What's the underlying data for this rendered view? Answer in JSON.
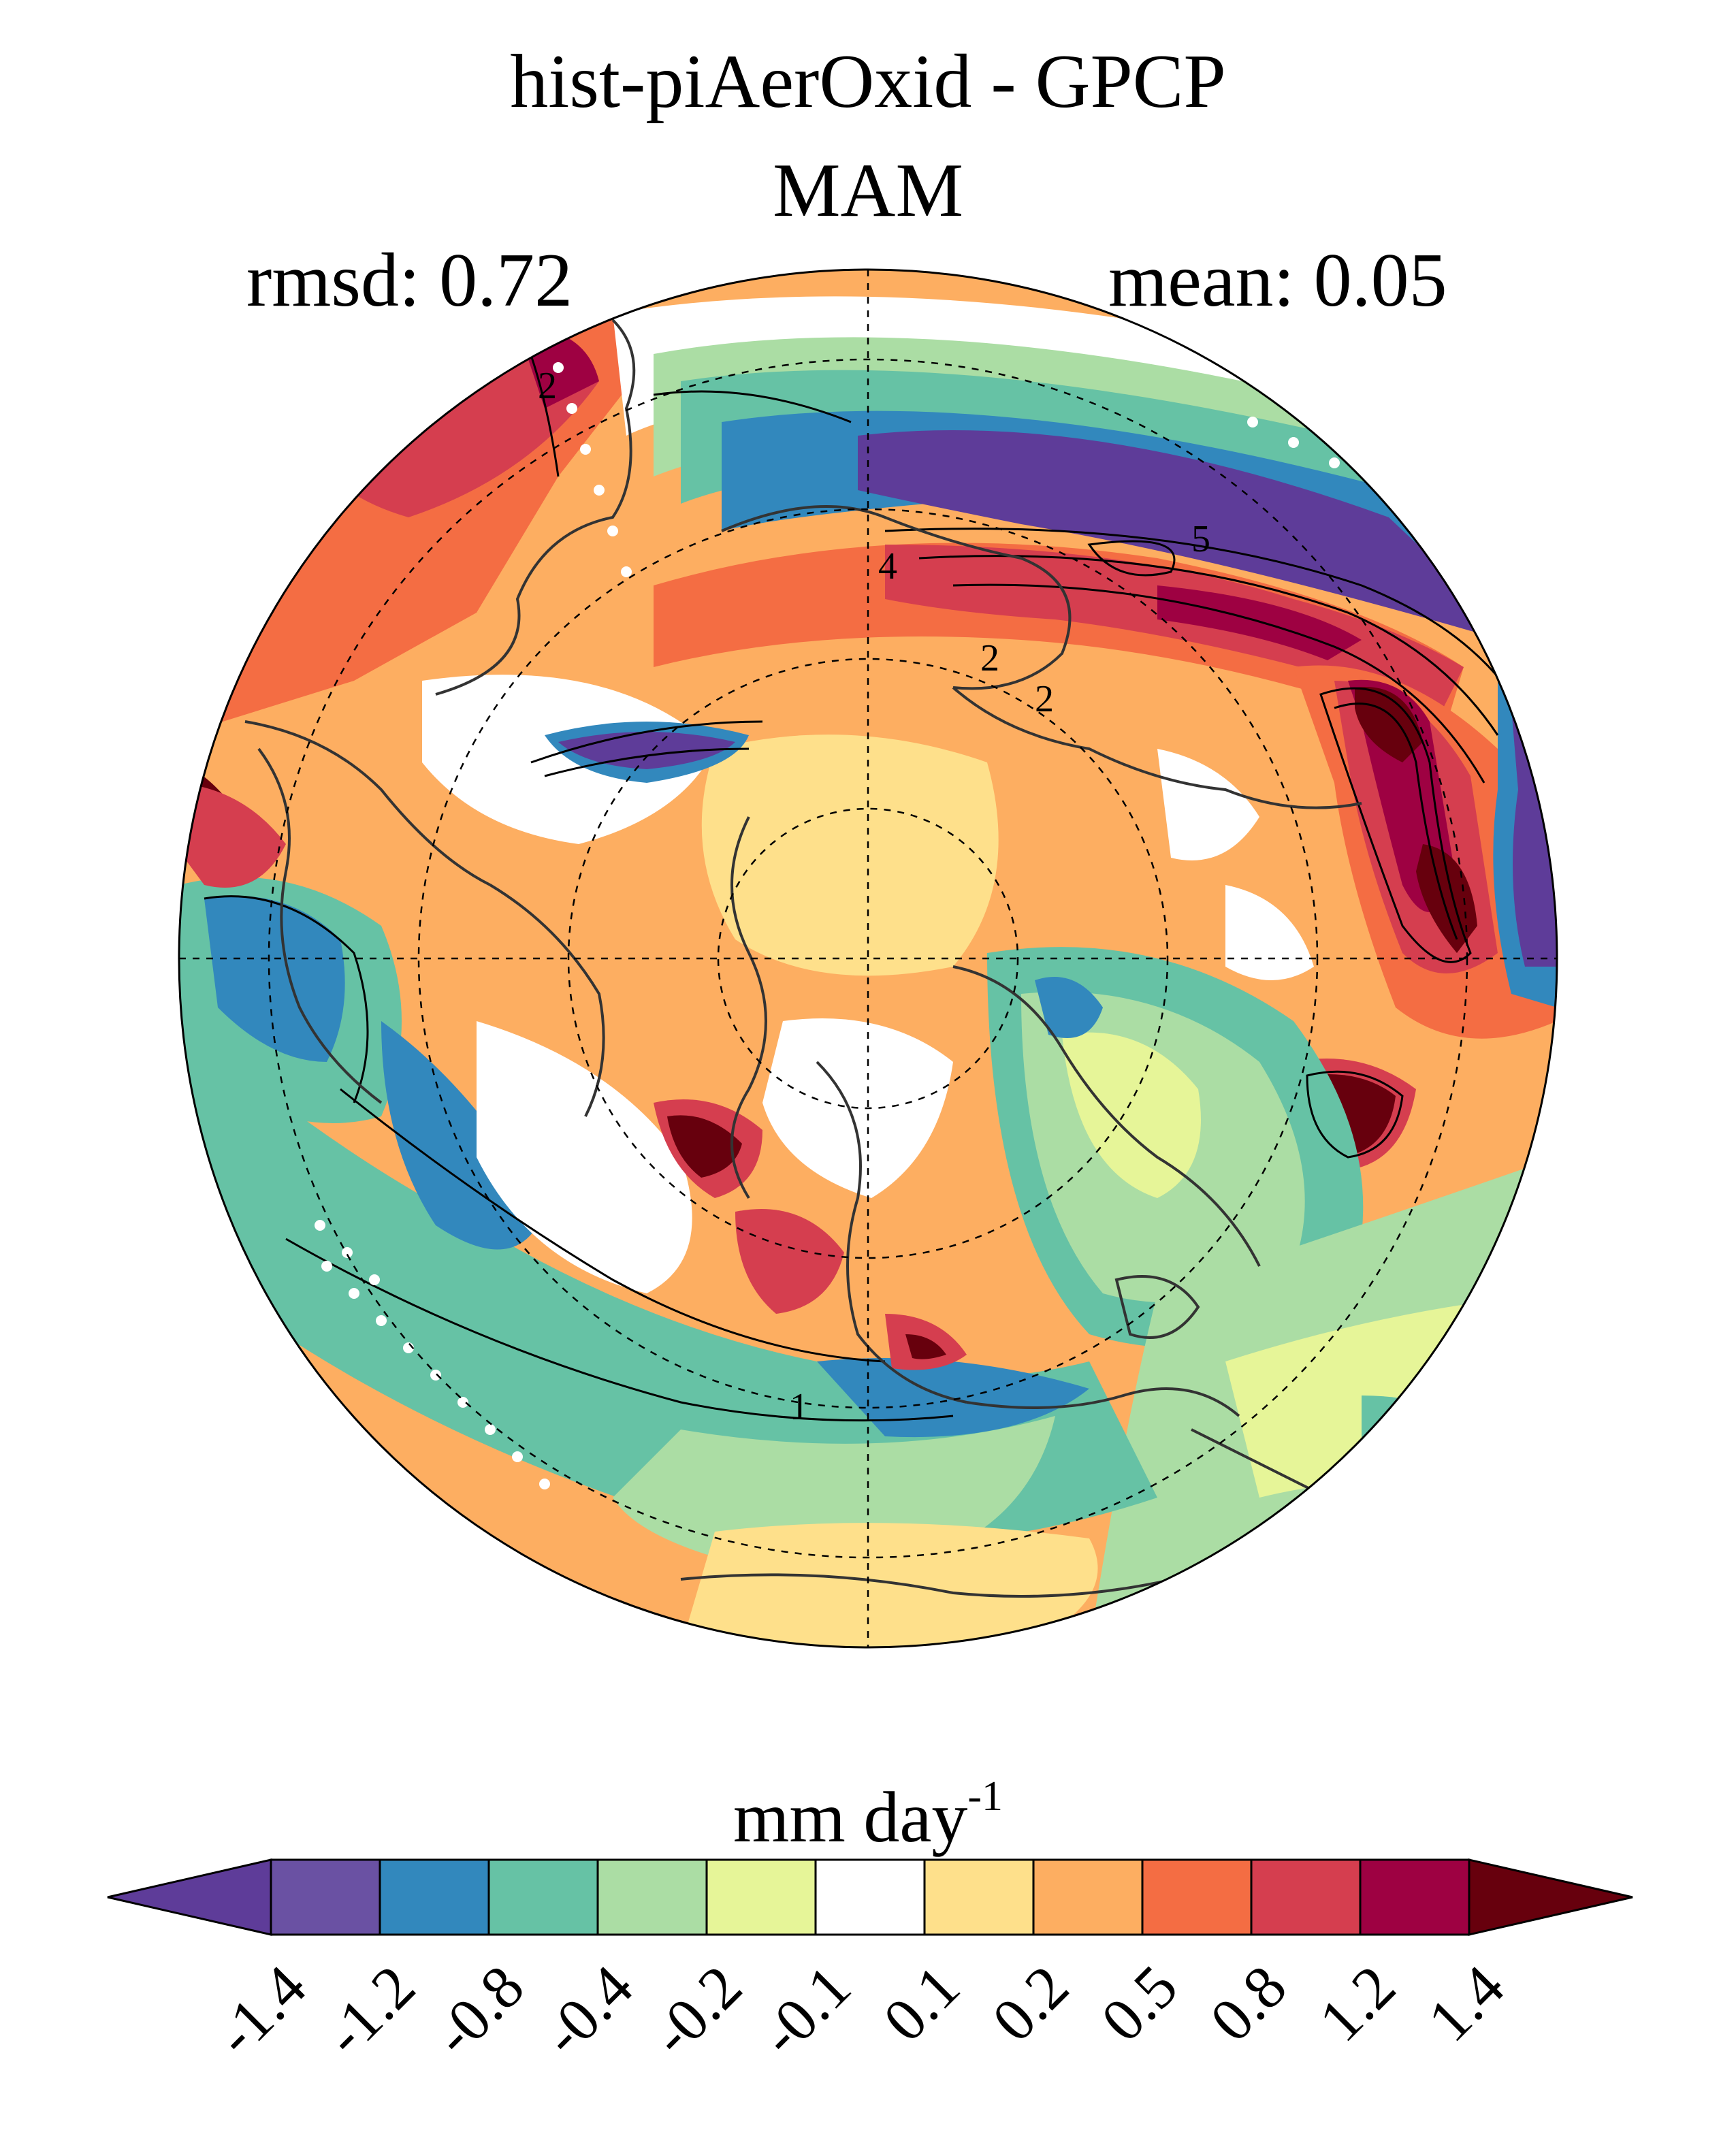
{
  "header": {
    "title": "hist-piAerOxid - GPCP",
    "season": "MAM",
    "rmsd_text": "rmsd: 0.72",
    "mean_text": "mean: 0.05"
  },
  "map": {
    "projection": "North polar stereographic",
    "graticule": "dashed",
    "contour_labels": [
      "2",
      "4",
      "5",
      "2",
      "2",
      "1"
    ]
  },
  "colorbar": {
    "unit_main": "mm day",
    "unit_exponent": "-1",
    "levels": [
      "-1.4",
      "-1.2",
      "-0.8",
      "-0.4",
      "-0.2",
      "-0.1",
      "0.1",
      "0.2",
      "0.5",
      "0.8",
      "1.2",
      "1.4"
    ],
    "colors": [
      "#5e3c99",
      "#6a51a3",
      "#3288bd",
      "#66c2a5",
      "#abdda4",
      "#e6f598",
      "#ffffff",
      "#fee08b",
      "#fdae61",
      "#f46d43",
      "#d53e4f",
      "#9e0142",
      "#67000d"
    ],
    "extend": "both"
  }
}
